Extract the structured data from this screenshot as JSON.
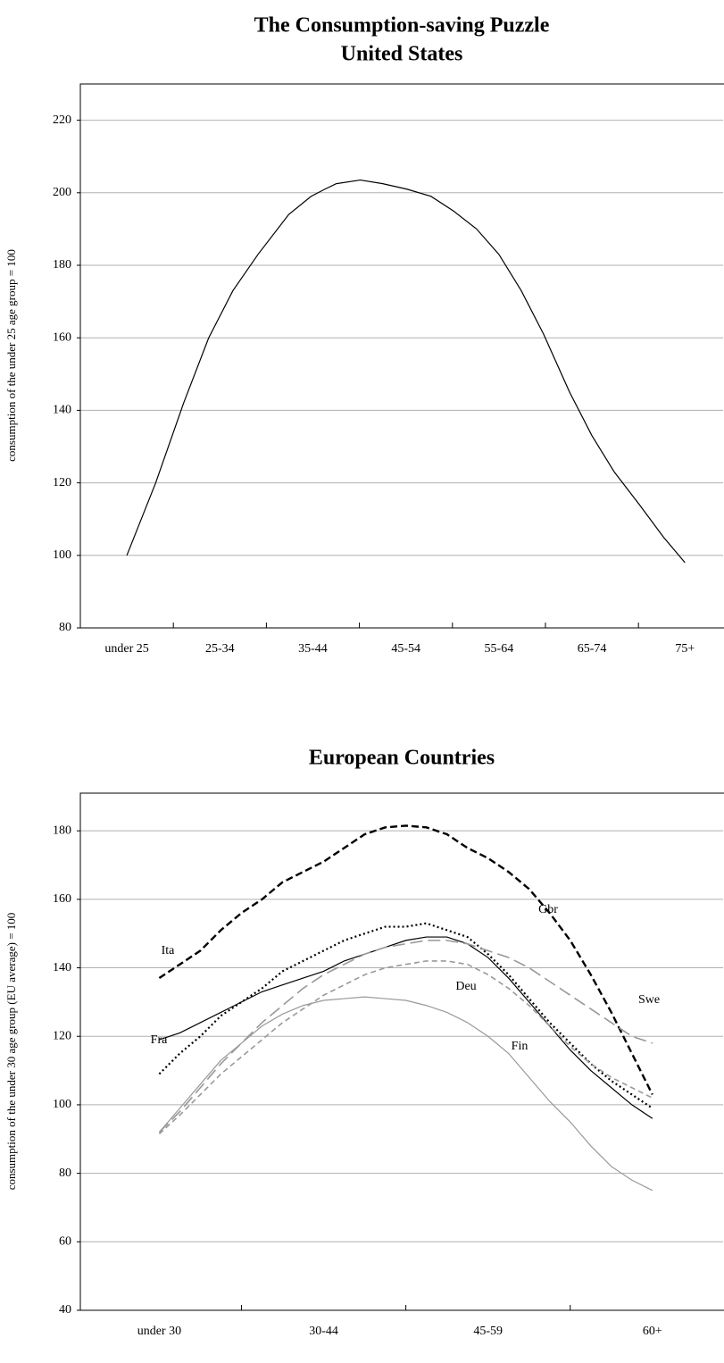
{
  "chart_data": [
    {
      "type": "line",
      "title": "The Consumption-saving Puzzle",
      "subtitle": "United States",
      "ylabel": "consumption of the under 25 age group = 100",
      "x": [
        0,
        0.31,
        0.61,
        0.88,
        1.14,
        1.41,
        1.74,
        1.98,
        2.13,
        2.25,
        2.51,
        2.75,
        3.01,
        3.27,
        3.51,
        3.76,
        4.0,
        4.24,
        4.48,
        4.76,
        5.0,
        5.24,
        5.51,
        5.77,
        6.0
      ],
      "series": [
        {
          "color": "#000000",
          "dash": "solid",
          "values": [
            100,
            120,
            142,
            160,
            173,
            183,
            194,
            199,
            201,
            202.5,
            203.5,
            202.5,
            201,
            199,
            195,
            190,
            183,
            173,
            161,
            145,
            133,
            123,
            114,
            105,
            98
          ]
        }
      ],
      "xlim": [
        -0.5,
        6.41
      ],
      "xticks": [
        {
          "value": 0,
          "label": "under 25"
        },
        {
          "value": 1,
          "label": "25-34"
        },
        {
          "value": 2,
          "label": "35-44"
        },
        {
          "value": 3,
          "label": "45-54"
        },
        {
          "value": 4,
          "label": "55-64"
        },
        {
          "value": 5,
          "label": "65-74"
        },
        {
          "value": 6,
          "label": "75+"
        }
      ],
      "ylim": [
        80,
        230
      ],
      "yticks": [
        80,
        100,
        120,
        140,
        160,
        180,
        200,
        220
      ],
      "grid": true
    },
    {
      "type": "line",
      "title": "European Countries",
      "ylabel": "consumption of the under 30 age group (EU average) = 100",
      "x": [
        0,
        0.125,
        0.25,
        0.375,
        0.5,
        0.625,
        0.75,
        0.875,
        1,
        1.125,
        1.25,
        1.375,
        1.5,
        1.625,
        1.75,
        1.875,
        2,
        2.125,
        2.25,
        2.375,
        2.5,
        2.625,
        2.75,
        2.875,
        3
      ],
      "series": [
        {
          "name": "Gbr",
          "color": "#000000",
          "dash": "dashed-bold",
          "values": [
            137,
            141,
            145,
            151,
            156,
            160,
            165,
            168,
            171,
            175,
            179,
            181,
            181.5,
            181,
            179,
            175,
            172,
            168,
            163,
            156,
            148,
            138,
            127,
            115,
            103
          ]
        },
        {
          "name": "Ita",
          "color": "#000000",
          "dash": "solid",
          "values": [
            119,
            121,
            124,
            127,
            130,
            133,
            135,
            137,
            139,
            142,
            144,
            146,
            148,
            149,
            149,
            147,
            143,
            137,
            130,
            123,
            116,
            110,
            105,
            100,
            96
          ]
        },
        {
          "name": "Fra",
          "color": "#000000",
          "dash": "dotted",
          "values": [
            109,
            115,
            120,
            126,
            130,
            134,
            139,
            142,
            145,
            148,
            150,
            152,
            152,
            153,
            151,
            149,
            144,
            138,
            131,
            124,
            118,
            112,
            107,
            103,
            99
          ]
        },
        {
          "name": "Deu",
          "color": "#999999",
          "dash": "short-dashed",
          "values": [
            91.5,
            97,
            103,
            109,
            114,
            119,
            124,
            128,
            132,
            135,
            138,
            140,
            141,
            142,
            142,
            141,
            138,
            134,
            129,
            123,
            117,
            112,
            108,
            105,
            102
          ]
        },
        {
          "name": "Swe",
          "color": "#999999",
          "dash": "long-dashed",
          "values": [
            92,
            98,
            105,
            112,
            118,
            124,
            129,
            134,
            138,
            141,
            144,
            146,
            147,
            148,
            148,
            147,
            145,
            143,
            140,
            136,
            132,
            128,
            124,
            120,
            118
          ]
        },
        {
          "name": "Fin",
          "color": "#999999",
          "dash": "solid",
          "values": [
            92,
            99,
            106,
            113,
            118,
            123,
            126.5,
            129,
            130.5,
            131,
            131.5,
            131,
            130.5,
            129,
            127,
            124,
            120,
            115,
            108,
            101,
            95,
            88,
            82,
            78,
            75
          ]
        }
      ],
      "xlim": [
        -0.48,
        3.43
      ],
      "xticks": [
        {
          "value": 0,
          "label": "under 30"
        },
        {
          "value": 1,
          "label": "30-44"
        },
        {
          "value": 2,
          "label": "45-59"
        },
        {
          "value": 3,
          "label": "60+"
        }
      ],
      "ylim": [
        40,
        191
      ],
      "yticks": [
        40,
        60,
        80,
        100,
        120,
        140,
        160,
        180
      ],
      "grid": true
    }
  ]
}
